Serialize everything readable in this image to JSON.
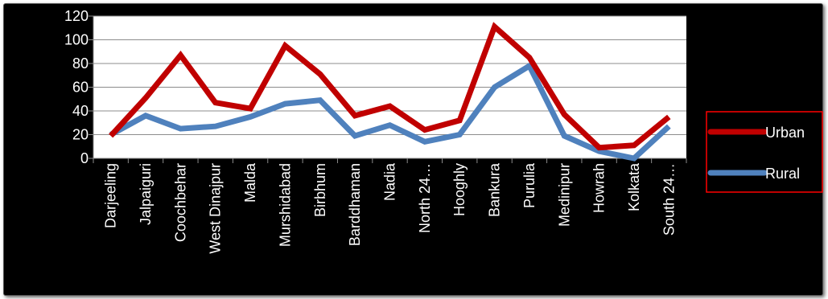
{
  "chart_data": {
    "type": "line",
    "title": "",
    "xlabel": "",
    "ylabel": "",
    "ylim": [
      0,
      120
    ],
    "yticks": [
      0,
      20,
      40,
      60,
      80,
      100,
      120
    ],
    "grid": true,
    "legend_position": "right",
    "categories": [
      "Darjeeling",
      "Jalpaiguri",
      "Coochbehar",
      "West Dinajpur",
      "Malda",
      "Murshidabad",
      "Birbhum",
      "Barddhaman",
      "Nadia",
      "North 24…",
      "Hooghly",
      "Bankura",
      "Purulia",
      "Medinipur",
      "Howrah",
      "Kolkata",
      "South 24…"
    ],
    "series": [
      {
        "name": "Urban",
        "color": "#c00000",
        "values": [
          19,
          51,
          87,
          47,
          42,
          95,
          71,
          36,
          44,
          24,
          32,
          111,
          85,
          37,
          9,
          11,
          35
        ]
      },
      {
        "name": "Rural",
        "color": "#4f81bd",
        "values": [
          20,
          36,
          25,
          27,
          35,
          46,
          49,
          19,
          28,
          14,
          20,
          60,
          78,
          19,
          6,
          0,
          27
        ]
      }
    ]
  }
}
